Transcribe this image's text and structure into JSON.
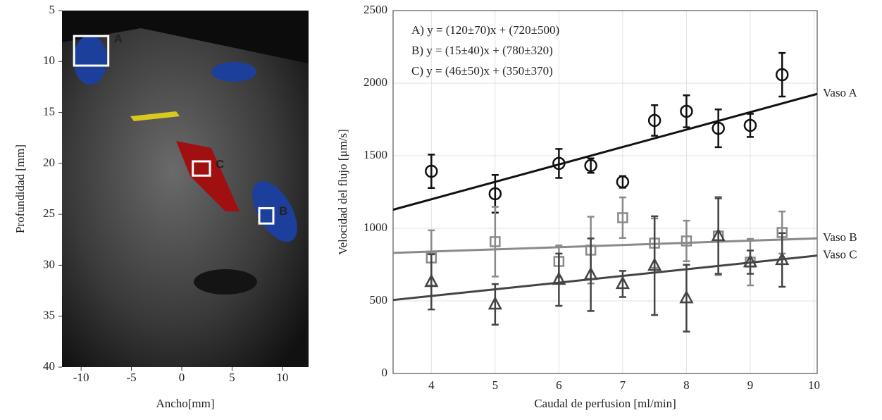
{
  "chart_data": [
    {
      "type": "image",
      "xlabel": "Ancho[mm]",
      "ylabel": "Profundidad [mm]",
      "xlim": [
        -11.9,
        12.6
      ],
      "ylim": [
        5,
        40
      ],
      "y_reversed": true,
      "xticks": [
        -10,
        -5,
        0,
        5,
        10
      ],
      "yticks": [
        5,
        10,
        15,
        20,
        25,
        30,
        35,
        40
      ],
      "regions": [
        {
          "label": "A",
          "x": [
            -10.7,
            -7.3
          ],
          "y": [
            7.5,
            10.4
          ]
        },
        {
          "label": "C",
          "x": [
            1.1,
            2.8
          ],
          "y": [
            19.8,
            21.2
          ]
        },
        {
          "label": "B",
          "x": [
            7.7,
            9.1
          ],
          "y": [
            24.4,
            25.9
          ]
        }
      ]
    },
    {
      "type": "scatter",
      "xlabel": "Caudal de perfusion [ml/min]",
      "ylabel": "Velocidad del flujo [μm/s]",
      "xlim": [
        3.4,
        10.05
      ],
      "ylim": [
        0,
        2500
      ],
      "xticks": [
        4,
        5,
        6,
        7,
        8,
        9,
        10
      ],
      "yticks": [
        0,
        500,
        1000,
        1500,
        2000,
        2500
      ],
      "grid": true,
      "x": [
        4,
        5,
        6,
        6.5,
        7,
        7.5,
        8,
        8.5,
        9,
        9.5
      ],
      "series": [
        {
          "name": "Vaso A",
          "color": "#111111",
          "marker": "circle",
          "fit_label": "A) y = (120±70)x + (720±500)",
          "slope": 120,
          "intercept": 720,
          "values": [
            1393,
            1238,
            1447,
            1432,
            1320,
            1743,
            1806,
            1689,
            1709,
            2058
          ],
          "errors": [
            115,
            130,
            100,
            50,
            40,
            105,
            110,
            130,
            80,
            150
          ]
        },
        {
          "name": "Vaso B",
          "color": "#8a8a8a",
          "marker": "square",
          "fit_label": "B) y = (15±40)x + (780±320)",
          "slope": 15,
          "intercept": 780,
          "values": [
            796,
            908,
            772,
            850,
            1073,
            898,
            913,
            947,
            767,
            971
          ],
          "errors": [
            190,
            240,
            110,
            230,
            140,
            170,
            140,
            270,
            160,
            145
          ]
        },
        {
          "name": "Vaso C",
          "color": "#444444",
          "marker": "triangle",
          "fit_label": "C) y = (46±50)x + (350±370)",
          "slope": 46,
          "intercept": 350,
          "values": [
            631,
            476,
            646,
            680,
            617,
            743,
            519,
            947,
            767,
            782
          ],
          "errors": [
            190,
            140,
            180,
            250,
            90,
            340,
            230,
            260,
            80,
            185
          ]
        }
      ]
    }
  ]
}
